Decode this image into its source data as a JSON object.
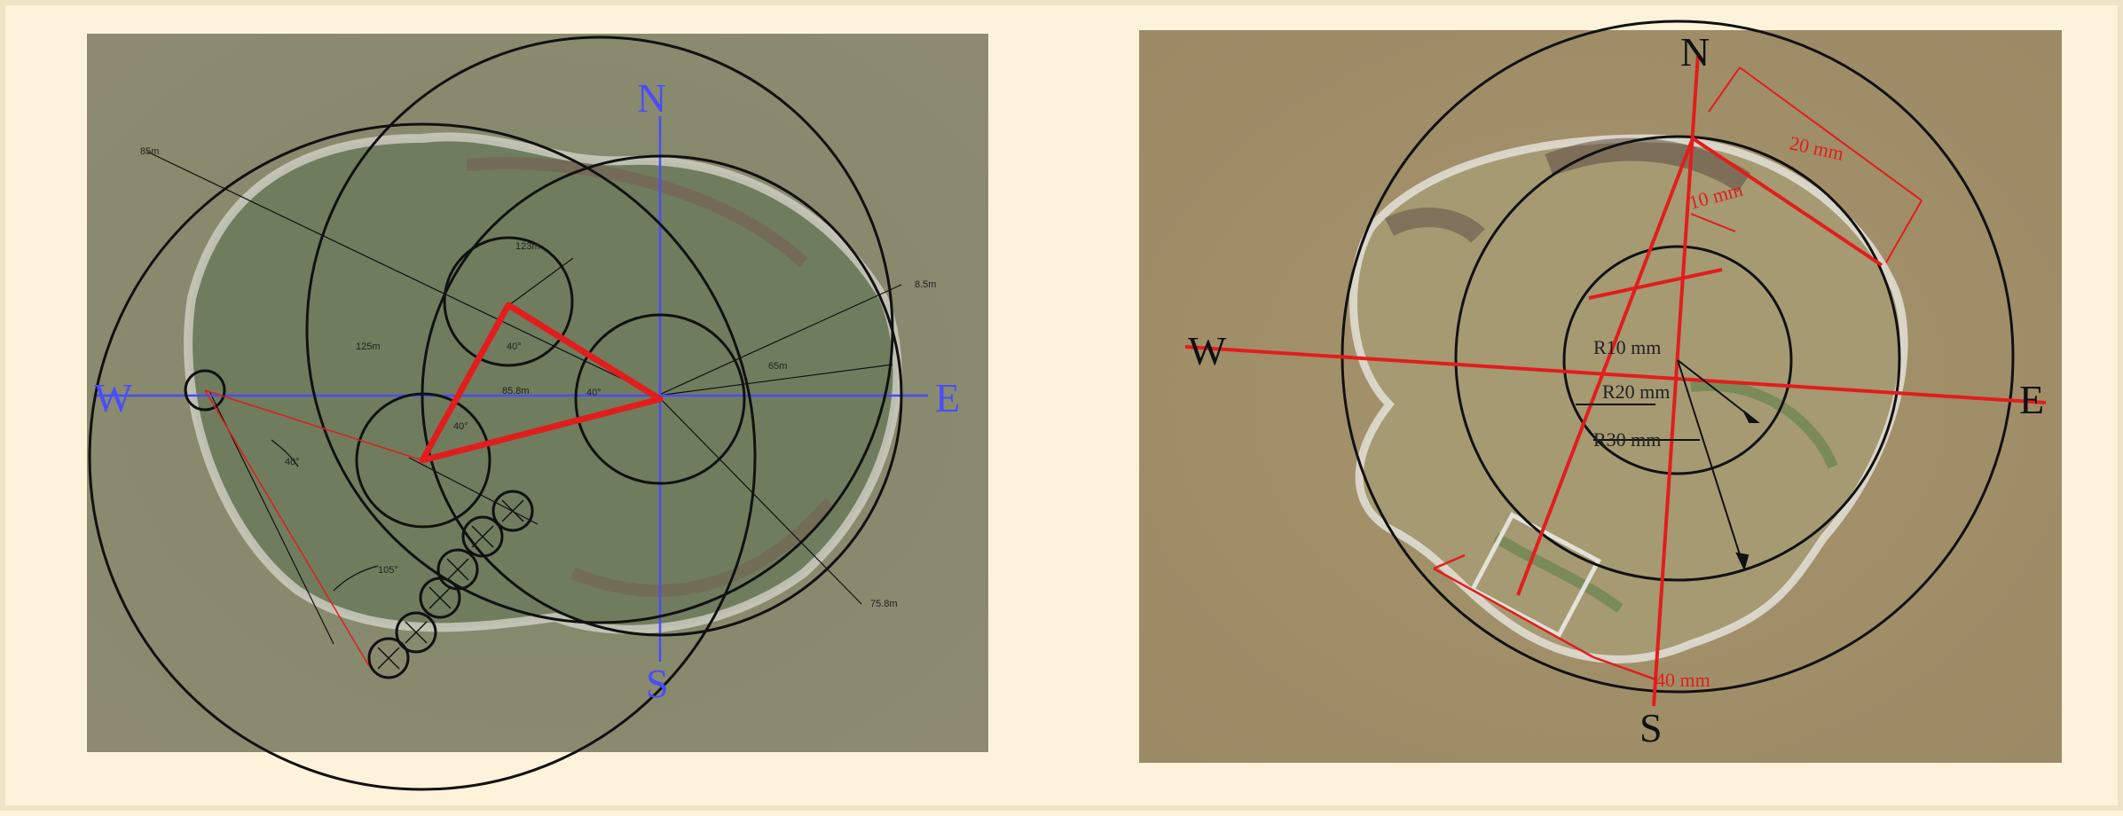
{
  "left_panel": {
    "compass": {
      "north": "N",
      "south": "S",
      "east": "E",
      "west": "W"
    },
    "annotations": [
      "85m",
      "123m",
      "125m",
      "8.5m",
      "65m",
      "40°",
      "40°",
      "105°",
      "75.8m",
      "85.8m",
      "40°",
      "40°"
    ]
  },
  "right_panel": {
    "compass": {
      "north": "N",
      "south": "S",
      "east": "E",
      "west": "W"
    },
    "radius_labels": [
      "R10 mm",
      "R20 mm",
      "R30 mm"
    ],
    "dimension_labels": [
      "20 mm",
      "10 mm",
      "40 mm"
    ]
  },
  "colors": {
    "background": "#fdf3da",
    "ground": "#8c8a6c",
    "axis_blue": "#4b4bff",
    "marker_red": "#e21d1d",
    "circle_black": "#111111"
  }
}
